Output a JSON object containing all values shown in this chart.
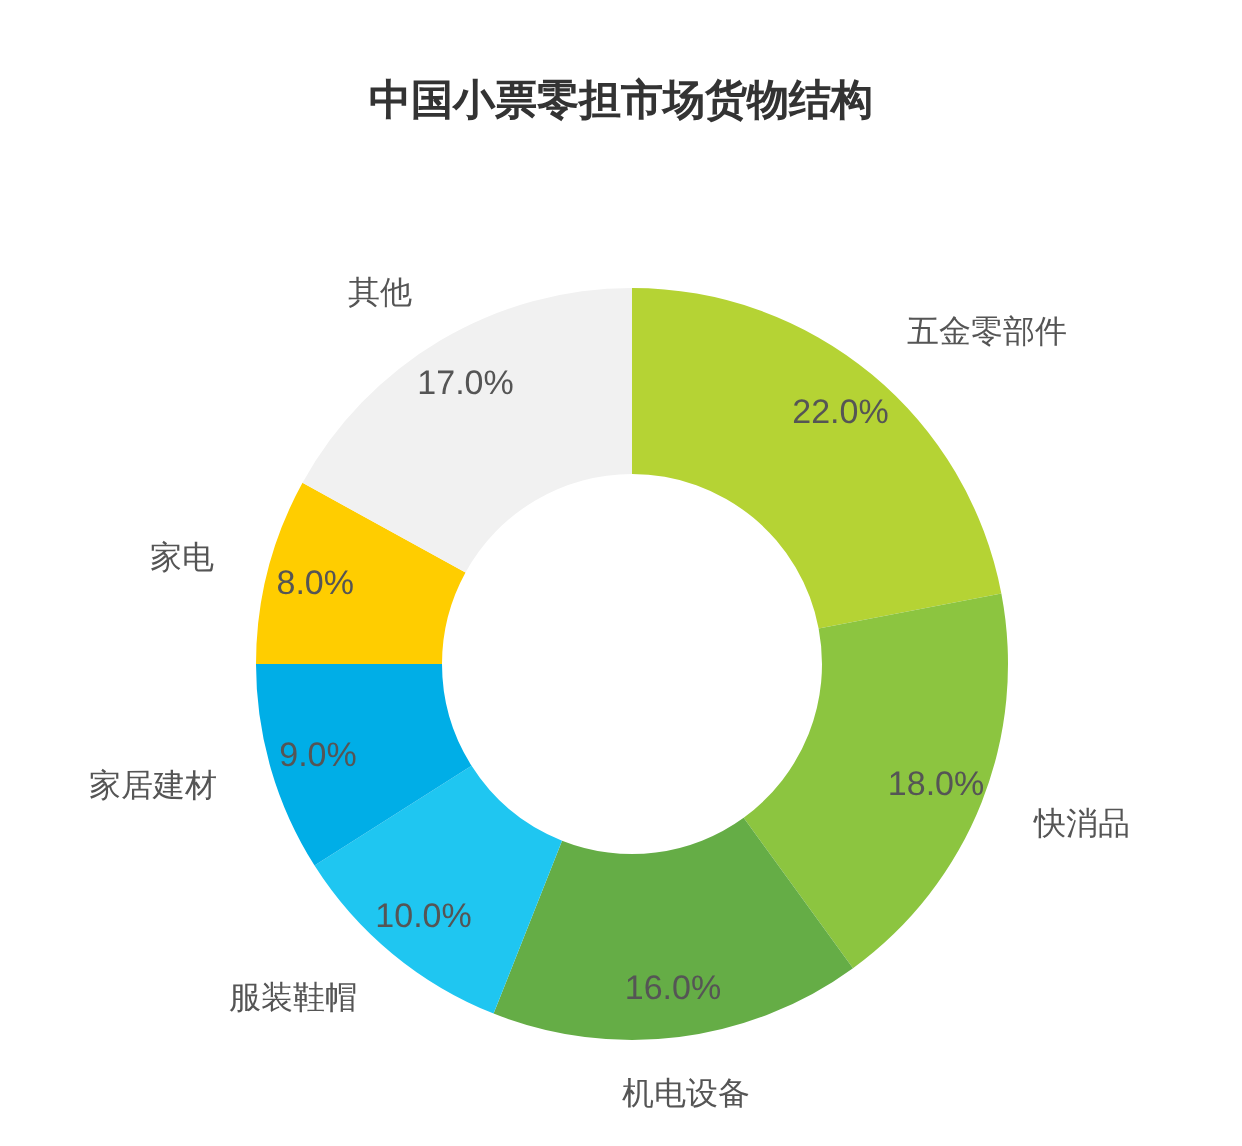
{
  "chart_data": {
    "type": "donut",
    "title": "中国小票零担市场货物结构",
    "categories": [
      "五金零部件",
      "快消品",
      "机电设备",
      "服装鞋帽",
      "家居建材",
      "家电",
      "其他"
    ],
    "values": [
      22,
      18,
      16,
      10,
      9,
      8,
      17
    ],
    "value_labels": [
      "22.0%",
      "18.0%",
      "16.0%",
      "10.0%",
      "9.0%",
      "8.0%",
      "17.0%"
    ],
    "colors": [
      "#b5d334",
      "#8cc540",
      "#65ad46",
      "#1fc6f1",
      "#00aee7",
      "#ffcd00",
      "#f1f1f1"
    ],
    "legend": false
  }
}
